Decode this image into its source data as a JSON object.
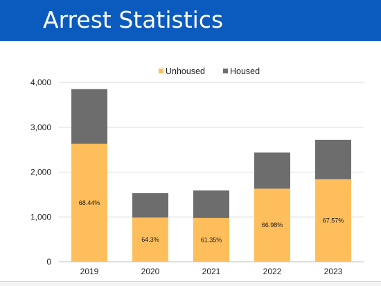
{
  "title": "Arrest Statistics",
  "colors": {
    "header": "#0a5bbd",
    "unhoused": "#ffbe5c",
    "housed": "#6d6d6d",
    "grid": "#d9d9d9"
  },
  "chart_data": {
    "type": "bar",
    "stacked": true,
    "categories": [
      "2019",
      "2020",
      "2021",
      "2022",
      "2023"
    ],
    "series": [
      {
        "name": "Unhoused",
        "color": "#ffbe5c",
        "values": [
          2630,
          985,
          975,
          1630,
          1840
        ]
      },
      {
        "name": "Housed",
        "color": "#6d6d6d",
        "values": [
          1220,
          545,
          615,
          805,
          880
        ]
      }
    ],
    "data_labels": [
      "68.44%",
      "64.3%",
      "61.35%",
      "66.98%",
      "67.57%"
    ],
    "yticks": [
      "0",
      "1,000",
      "2,000",
      "3,000",
      "4,000"
    ],
    "ylim": [
      0,
      4000
    ],
    "grid": true,
    "legend": "top-center"
  }
}
